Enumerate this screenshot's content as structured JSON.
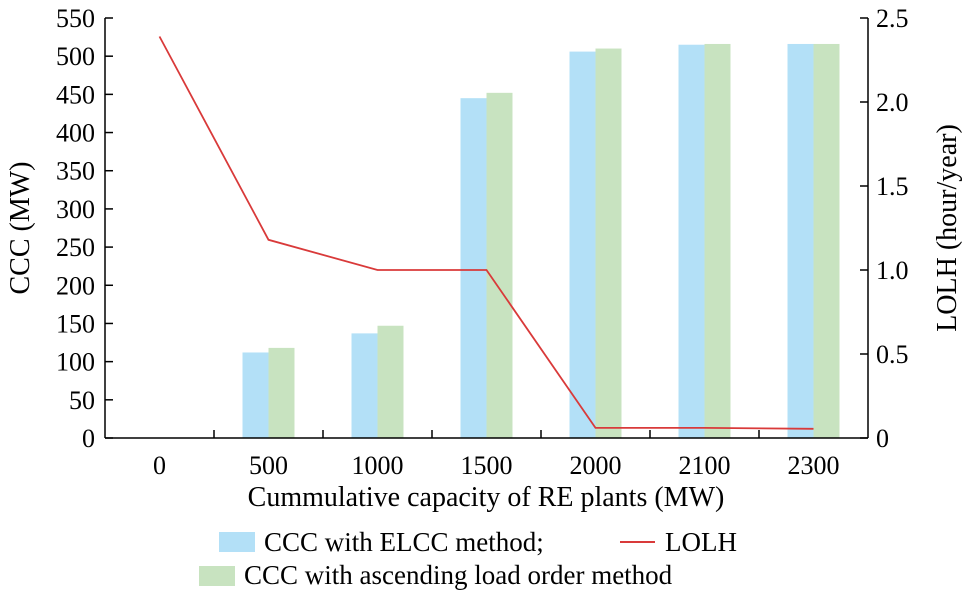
{
  "chart_data": {
    "type": "bar",
    "categories": [
      "0",
      "500",
      "1000",
      "1500",
      "2000",
      "2100",
      "2300"
    ],
    "series": [
      {
        "name": "CCC with ELCC method;",
        "kind": "bar",
        "axis": "left",
        "color": "#b3e0f7",
        "values": [
          0,
          112,
          137,
          445,
          506,
          515,
          516
        ]
      },
      {
        "name": "CCC with ascending load order method",
        "kind": "bar",
        "axis": "left",
        "color": "#c8e3c0",
        "values": [
          0,
          118,
          147,
          452,
          510,
          516,
          516
        ]
      },
      {
        "name": "LOLH",
        "kind": "line",
        "axis": "right",
        "color": "#d93a3a",
        "values": [
          2.39,
          1.18,
          1.0,
          1.0,
          0.06,
          0.06,
          0.055
        ]
      }
    ],
    "xlabel": "Cummulative capacity of RE plants (MW)",
    "ylabel": "CCC (MW)",
    "y2label": "LOLH (hour/year)",
    "ylim": [
      0,
      550
    ],
    "y2lim": [
      0,
      2.5
    ],
    "yticks": [
      "0",
      "50",
      "100",
      "150",
      "200",
      "250",
      "300",
      "350",
      "400",
      "450",
      "500",
      "550"
    ],
    "y2ticks": [
      "0",
      "0.5",
      "1.0",
      "1.5",
      "2.0",
      "2.5"
    ],
    "grid": false,
    "legend": "bottom",
    "legend_labels": {
      "elcc": "CCC with ELCC method;",
      "lolh": "LOLH",
      "ascending": "CCC with ascending load order method"
    }
  }
}
